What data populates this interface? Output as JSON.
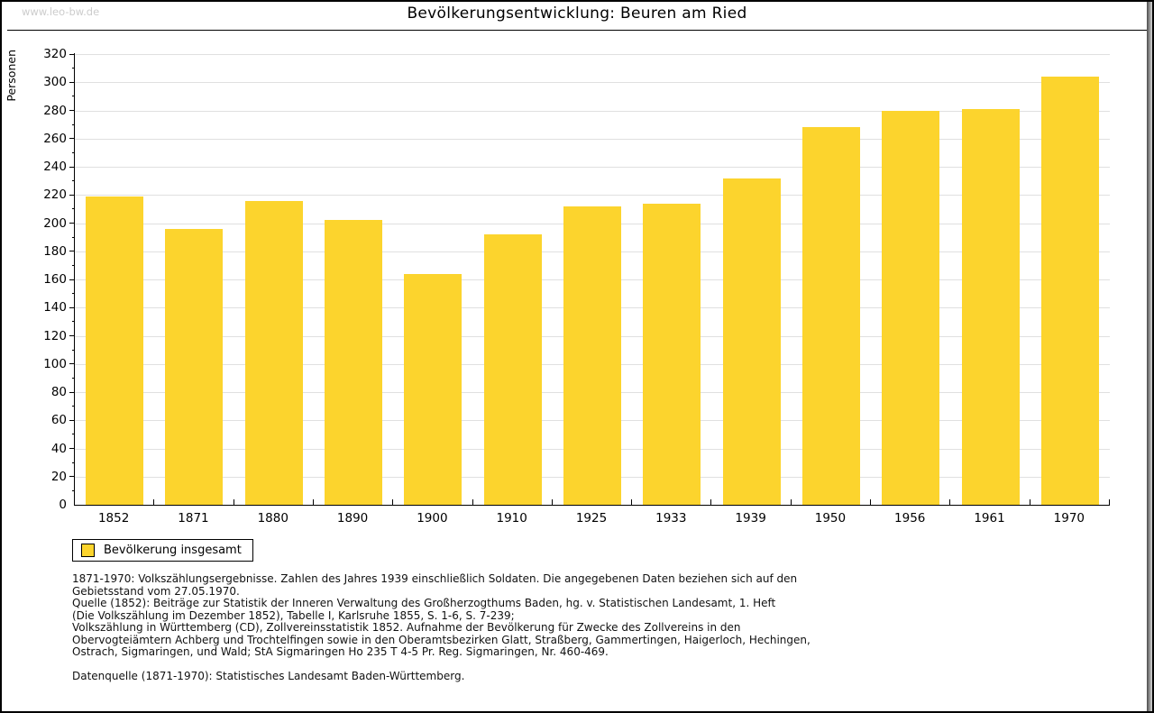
{
  "page": {
    "watermark": "www.leo-bw.de"
  },
  "chart_data": {
    "type": "bar",
    "title": "Bevölkerungsentwicklung: Beuren am Ried",
    "xlabel": "",
    "ylabel": "Personen",
    "categories": [
      "1852",
      "1871",
      "1880",
      "1890",
      "1900",
      "1910",
      "1925",
      "1933",
      "1939",
      "1950",
      "1956",
      "1961",
      "1970"
    ],
    "values": [
      219,
      196,
      216,
      202,
      164,
      192,
      212,
      214,
      232,
      268,
      280,
      281,
      304
    ],
    "series_name": "Bevölkerung insgesamt",
    "ylim": [
      0,
      320
    ],
    "ytick_step": 20,
    "yminor_step": 10,
    "grid": true,
    "legend_position": "bottom-left",
    "bar_color": "#FCD42D",
    "gridline_color": "#E0E0E0",
    "axis_color": "#000000",
    "watermark_color": "#CCCCCC"
  },
  "legend": {
    "label": "Bevölkerung insgesamt"
  },
  "footnotes": {
    "lines": [
      "1871-1970: Volkszählungsergebnisse. Zahlen des Jahres 1939 einschließlich Soldaten. Die angegebenen Daten beziehen sich auf den",
      "Gebietsstand vom 27.05.1970.",
      "Quelle (1852): Beiträge zur Statistik der Inneren Verwaltung des Großherzogthums Baden, hg. v. Statistischen Landesamt, 1. Heft",
      "(Die Volkszählung im Dezember 1852), Tabelle I, Karlsruhe 1855, S. 1-6, S. 7-239;",
      "Volkszählung in Württemberg (CD), Zollvereinsstatistik 1852. Aufnahme der Bevölkerung für Zwecke des Zollvereins in den",
      "Obervogteiämtern Achberg und Trochtelfingen sowie in den Oberamtsbezirken Glatt, Straßberg, Gammertingen, Haigerloch, Hechingen,",
      "Ostrach, Sigmaringen, und Wald; StA Sigmaringen Ho 235 T 4-5 Pr. Reg. Sigmaringen, Nr. 460-469."
    ],
    "datenquelle": "Datenquelle (1871-1970): Statistisches Landesamt Baden-Württemberg."
  }
}
